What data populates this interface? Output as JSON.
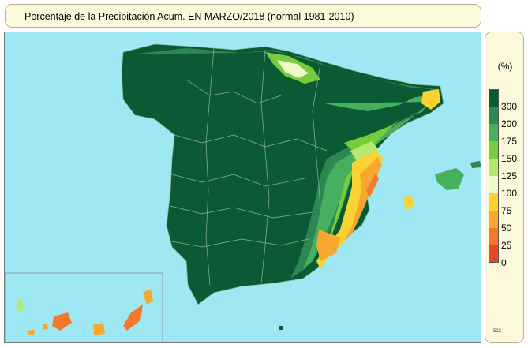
{
  "title": "Porcentaje de la Precipitación Acum. EN  MARZO/2018  (normal 1981-2010)",
  "legend": {
    "unit": "(%)",
    "code": "522",
    "items": [
      {
        "label": "300",
        "color": "#0a5a34"
      },
      {
        "label": "200",
        "color": "#2e8a55"
      },
      {
        "label": "175",
        "color": "#45b05e"
      },
      {
        "label": "150",
        "color": "#77cc3c"
      },
      {
        "label": "125",
        "color": "#b6e870"
      },
      {
        "label": "100",
        "color": "#eef8c8"
      },
      {
        "label": "75",
        "color": "#fad232"
      },
      {
        "label": "50",
        "color": "#f7a830"
      },
      {
        "label": "25",
        "color": "#f27a2e"
      },
      {
        "label": "0",
        "color": "#e6482a"
      }
    ]
  },
  "colors": {
    "sea": "#9ee8f4",
    "border_lines": "#8fb79e"
  }
}
